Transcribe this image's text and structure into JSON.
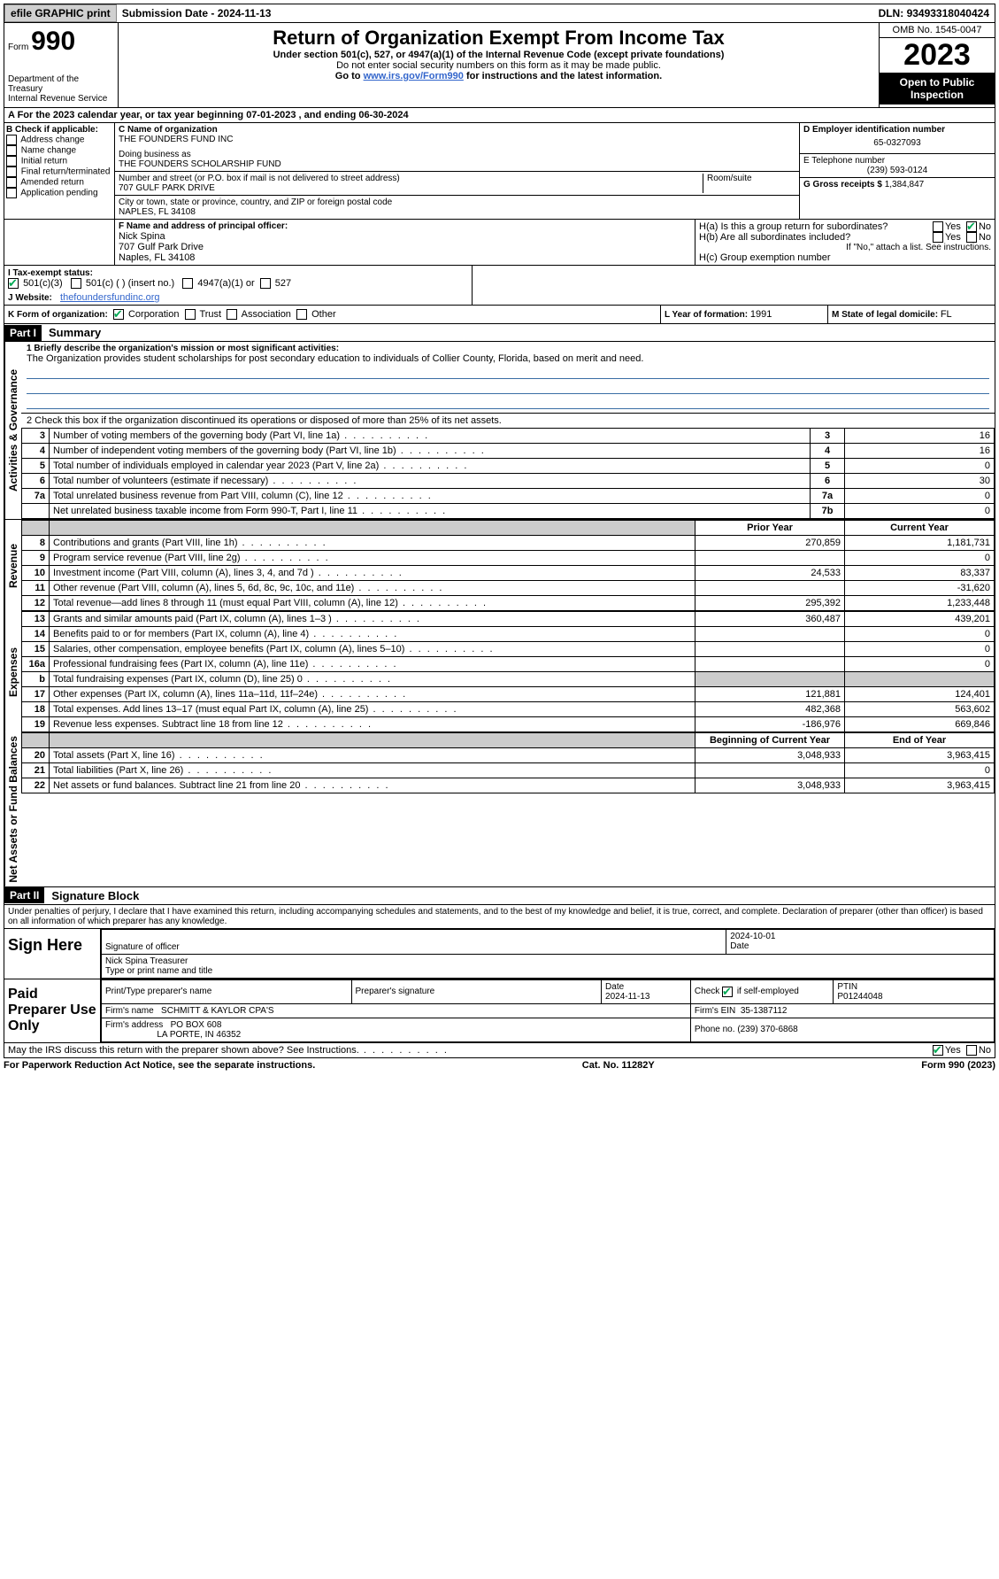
{
  "topbar": {
    "efile": "efile GRAPHIC print",
    "submission_label": "Submission Date - ",
    "submission_date": "2024-11-13",
    "dln_label": "DLN: ",
    "dln": "93493318040424"
  },
  "header": {
    "form_word": "Form",
    "form_number": "990",
    "dept": "Department of the Treasury",
    "irs": "Internal Revenue Service",
    "title": "Return of Organization Exempt From Income Tax",
    "sub1": "Under section 501(c), 527, or 4947(a)(1) of the Internal Revenue Code (except private foundations)",
    "sub2": "Do not enter social security numbers on this form as it may be made public.",
    "sub3_pre": "Go to ",
    "sub3_link": "www.irs.gov/Form990",
    "sub3_post": " for instructions and the latest information.",
    "omb": "OMB No. 1545-0047",
    "year": "2023",
    "open": "Open to Public Inspection"
  },
  "period": {
    "line": "A For the 2023 calendar year, or tax year beginning 07-01-2023   , and ending 06-30-2024"
  },
  "box_b": {
    "title": "B Check if applicable:",
    "items": [
      "Address change",
      "Name change",
      "Initial return",
      "Final return/terminated",
      "Amended return",
      "Application pending"
    ]
  },
  "box_c": {
    "name_lbl": "C Name of organization",
    "name": "THE FOUNDERS FUND INC",
    "dba_lbl": "Doing business as",
    "dba": "THE FOUNDERS SCHOLARSHIP FUND",
    "street_lbl": "Number and street (or P.O. box if mail is not delivered to street address)",
    "street": "707 GULF PARK DRIVE",
    "room_lbl": "Room/suite",
    "room": "",
    "city_lbl": "City or town, state or province, country, and ZIP or foreign postal code",
    "city": "NAPLES, FL  34108"
  },
  "box_d": {
    "lbl": "D Employer identification number",
    "val": "65-0327093"
  },
  "box_e": {
    "lbl": "E Telephone number",
    "val": "(239) 593-0124"
  },
  "box_g": {
    "lbl": "G Gross receipts $ ",
    "val": "1,384,847"
  },
  "box_f": {
    "lbl": "F  Name and address of principal officer:",
    "name": "Nick Spina",
    "street": "707 Gulf Park Drive",
    "city": "Naples, FL  34108"
  },
  "box_h": {
    "a": "H(a)  Is this a group return for subordinates?",
    "b": "H(b)  Are all subordinates included?",
    "b_note": "If \"No,\" attach a list. See instructions.",
    "c": "H(c)  Group exemption number",
    "yes": "Yes",
    "no": "No"
  },
  "line_i": {
    "lbl": "I    Tax-exempt status:",
    "o1": "501(c)(3)",
    "o2": "501(c) (  ) (insert no.)",
    "o3": "4947(a)(1) or",
    "o4": "527"
  },
  "line_j": {
    "lbl": "J   Website:",
    "val": "thefoundersfundinc.org"
  },
  "line_k": {
    "lbl": "K Form of organization:",
    "o1": "Corporation",
    "o2": "Trust",
    "o3": "Association",
    "o4": "Other"
  },
  "line_l": {
    "lbl": "L Year of formation: ",
    "val": "1991"
  },
  "line_m": {
    "lbl": "M State of legal domicile: ",
    "val": "FL"
  },
  "part1": {
    "tag": "Part I",
    "title": "Summary",
    "q1_lbl": "1   Briefly describe the organization's mission or most significant activities:",
    "q1_val": "The Organization provides student scholarships for post secondary education to individuals of Collier County, Florida, based on merit and need.",
    "q2": "2   Check this box       if the organization discontinued its operations or disposed of more than 25% of its net assets.",
    "tabs": {
      "ag": "Activities & Governance",
      "rev": "Revenue",
      "exp": "Expenses",
      "na": "Net Assets or Fund Balances"
    },
    "rows_ag": [
      {
        "n": "3",
        "t": "Number of voting members of the governing body (Part VI, line 1a)",
        "box": "3",
        "v": "16"
      },
      {
        "n": "4",
        "t": "Number of independent voting members of the governing body (Part VI, line 1b)",
        "box": "4",
        "v": "16"
      },
      {
        "n": "5",
        "t": "Total number of individuals employed in calendar year 2023 (Part V, line 2a)",
        "box": "5",
        "v": "0"
      },
      {
        "n": "6",
        "t": "Total number of volunteers (estimate if necessary)",
        "box": "6",
        "v": "30"
      },
      {
        "n": "7a",
        "t": "Total unrelated business revenue from Part VIII, column (C), line 12",
        "box": "7a",
        "v": "0"
      },
      {
        "n": "",
        "t": "Net unrelated business taxable income from Form 990-T, Part I, line 11",
        "box": "7b",
        "v": "0"
      }
    ],
    "hdr_prior": "Prior Year",
    "hdr_current": "Current Year",
    "rows_rev": [
      {
        "n": "8",
        "t": "Contributions and grants (Part VIII, line 1h)",
        "p": "270,859",
        "c": "1,181,731"
      },
      {
        "n": "9",
        "t": "Program service revenue (Part VIII, line 2g)",
        "p": "",
        "c": "0"
      },
      {
        "n": "10",
        "t": "Investment income (Part VIII, column (A), lines 3, 4, and 7d )",
        "p": "24,533",
        "c": "83,337"
      },
      {
        "n": "11",
        "t": "Other revenue (Part VIII, column (A), lines 5, 6d, 8c, 9c, 10c, and 11e)",
        "p": "",
        "c": "-31,620"
      },
      {
        "n": "12",
        "t": "Total revenue—add lines 8 through 11 (must equal Part VIII, column (A), line 12)",
        "p": "295,392",
        "c": "1,233,448"
      }
    ],
    "rows_exp": [
      {
        "n": "13",
        "t": "Grants and similar amounts paid (Part IX, column (A), lines 1–3 )",
        "p": "360,487",
        "c": "439,201"
      },
      {
        "n": "14",
        "t": "Benefits paid to or for members (Part IX, column (A), line 4)",
        "p": "",
        "c": "0"
      },
      {
        "n": "15",
        "t": "Salaries, other compensation, employee benefits (Part IX, column (A), lines 5–10)",
        "p": "",
        "c": "0"
      },
      {
        "n": "16a",
        "t": "Professional fundraising fees (Part IX, column (A), line 11e)",
        "p": "",
        "c": "0"
      },
      {
        "n": "b",
        "t": "Total fundraising expenses (Part IX, column (D), line 25) 0",
        "p": "__shade__",
        "c": "__shade__"
      },
      {
        "n": "17",
        "t": "Other expenses (Part IX, column (A), lines 11a–11d, 11f–24e)",
        "p": "121,881",
        "c": "124,401"
      },
      {
        "n": "18",
        "t": "Total expenses. Add lines 13–17 (must equal Part IX, column (A), line 25)",
        "p": "482,368",
        "c": "563,602"
      },
      {
        "n": "19",
        "t": "Revenue less expenses. Subtract line 18 from line 12",
        "p": "-186,976",
        "c": "669,846"
      }
    ],
    "hdr_boy": "Beginning of Current Year",
    "hdr_eoy": "End of Year",
    "rows_na": [
      {
        "n": "20",
        "t": "Total assets (Part X, line 16)",
        "p": "3,048,933",
        "c": "3,963,415"
      },
      {
        "n": "21",
        "t": "Total liabilities (Part X, line 26)",
        "p": "",
        "c": "0"
      },
      {
        "n": "22",
        "t": "Net assets or fund balances. Subtract line 21 from line 20",
        "p": "3,048,933",
        "c": "3,963,415"
      }
    ]
  },
  "part2": {
    "tag": "Part II",
    "title": "Signature Block",
    "perjury": "Under penalties of perjury, I declare that I have examined this return, including accompanying schedules and statements, and to the best of my knowledge and belief, it is true, correct, and complete. Declaration of preparer (other than officer) is based on all information of which preparer has any knowledge.",
    "sign_here": "Sign Here",
    "sig_officer_lbl": "Signature of officer",
    "sig_officer_name": "Nick Spina  Treasurer",
    "sig_type_lbl": "Type or print name and title",
    "sig_date": "2024-10-01",
    "date_lbl": "Date",
    "paid_prep": "Paid Preparer Use Only",
    "pp_name_lbl": "Print/Type preparer's name",
    "pp_sig_lbl": "Preparer's signature",
    "pp_date_lbl": "Date",
    "pp_date": "2024-11-13",
    "pp_self_lbl": "Check       if self-employed",
    "pp_ptin_lbl": "PTIN",
    "pp_ptin": "P01244048",
    "firm_name_lbl": "Firm's name",
    "firm_name": "SCHMITT & KAYLOR CPA'S",
    "firm_ein_lbl": "Firm's EIN",
    "firm_ein": "35-1387112",
    "firm_addr_lbl": "Firm's address",
    "firm_addr1": "PO BOX 608",
    "firm_addr2": "LA PORTE, IN  46352",
    "firm_phone_lbl": "Phone no.",
    "firm_phone": "(239) 370-6868",
    "discuss": "May the IRS discuss this return with the preparer shown above? See Instructions.",
    "yes": "Yes",
    "no": "No"
  },
  "footer": {
    "pra": "For Paperwork Reduction Act Notice, see the separate instructions.",
    "cat": "Cat. No. 11282Y",
    "form": "Form 990 (2023)"
  }
}
